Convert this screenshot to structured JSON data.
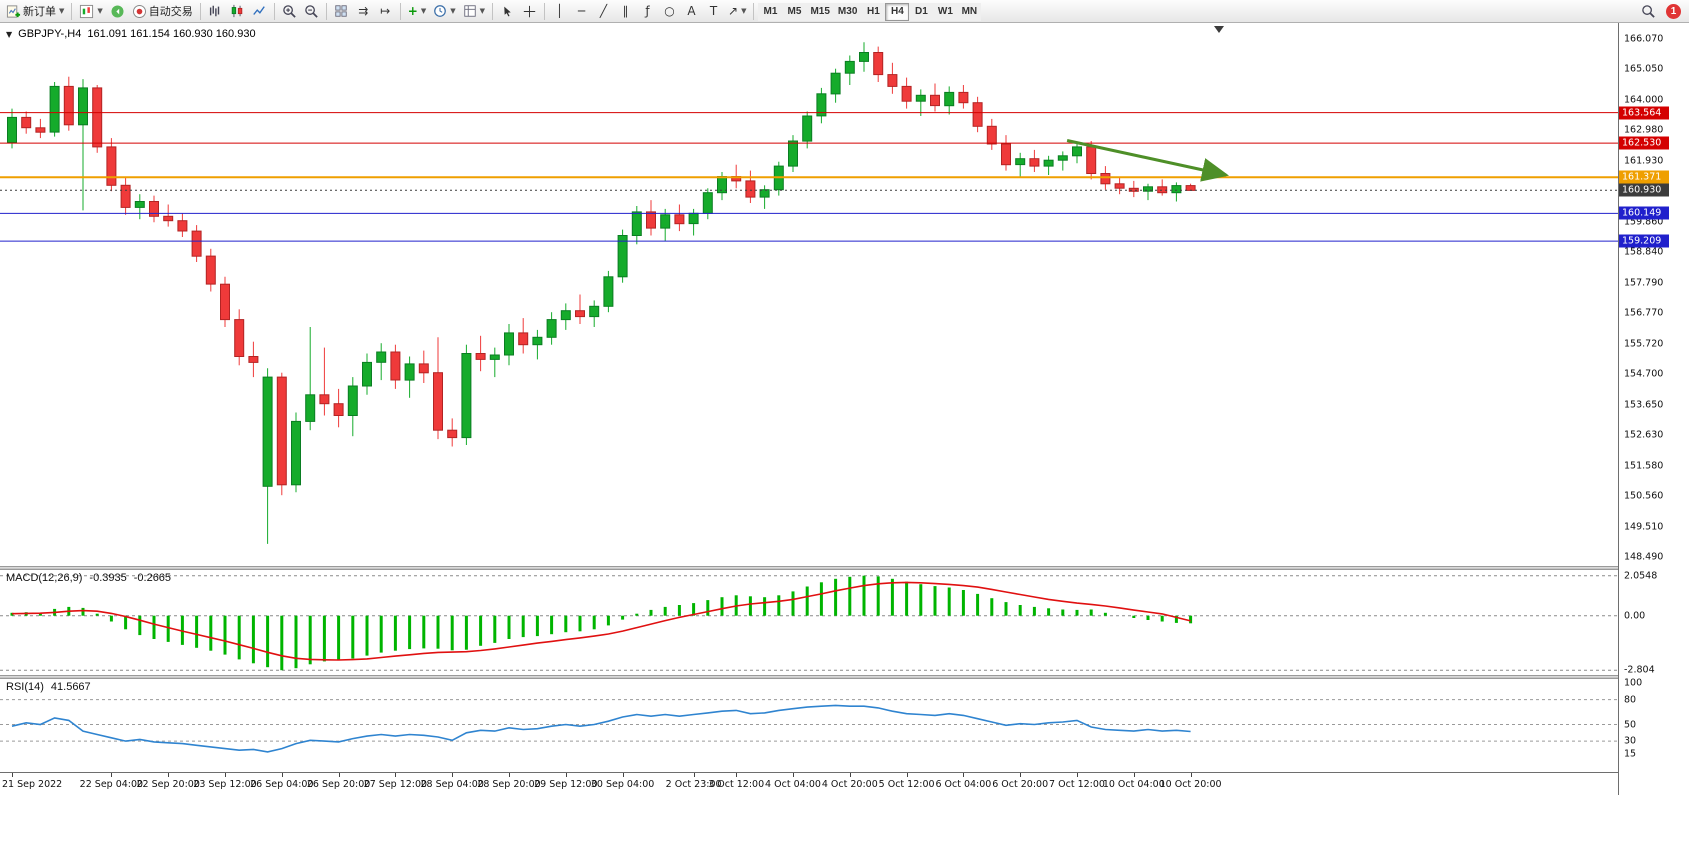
{
  "toolbar": {
    "new_order_label": "新订单",
    "auto_trading_label": "自动交易",
    "timeframes": [
      "M1",
      "M5",
      "M15",
      "M30",
      "H1",
      "H4",
      "D1",
      "W1",
      "MN"
    ],
    "active_timeframe": "H4",
    "notification_count": "1"
  },
  "chart": {
    "symbol_label": "GBPJPY-,H4",
    "ohlc_text": "161.091 161.154 160.930 160.930",
    "price_axis": [
      "166.070",
      "165.050",
      "164.000",
      "162.980",
      "161.930",
      "159.860",
      "158.840",
      "157.790",
      "156.770",
      "155.720",
      "154.700",
      "153.650",
      "152.630",
      "151.580",
      "150.560",
      "149.510",
      "148.490"
    ],
    "levels": [
      {
        "price": 163.564,
        "label": "163.564",
        "color": "#d40000",
        "style": "solid",
        "width": 1
      },
      {
        "price": 162.53,
        "label": "162.530",
        "color": "#d40000",
        "style": "solid",
        "width": 1
      },
      {
        "price": 161.371,
        "label": "161.371",
        "color": "#ef9f00",
        "style": "solid",
        "width": 2
      },
      {
        "price": 160.93,
        "label": "160.930",
        "color": "#3c3c3c",
        "style": "dotted",
        "width": 1
      },
      {
        "price": 160.149,
        "label": "160.149",
        "color": "#2020cc",
        "style": "solid",
        "width": 1
      },
      {
        "price": 159.209,
        "label": "159.209",
        "color": "#2020cc",
        "style": "solid",
        "width": 1
      }
    ],
    "arrow": {
      "from_idx": 74.3,
      "from_price": 162.62,
      "to_idx": 85.5,
      "to_price": 161.45,
      "color": "#4e8f28"
    },
    "shift_marker_idx": 85
  },
  "chart_data": {
    "type": "candlestick",
    "title": "GBPJPY- H4",
    "symbol": "GBPJPY",
    "timeframe": "H4",
    "up_color": "#15ab2b",
    "down_color": "#ef3a3a",
    "candles": [
      [
        "21 Sep 00:00",
        162.55,
        163.7,
        162.35,
        163.4
      ],
      [
        "21 Sep 04:00",
        163.4,
        163.6,
        162.85,
        163.05
      ],
      [
        "21 Sep 08:00",
        163.05,
        163.35,
        162.7,
        162.9
      ],
      [
        "21 Sep 12:00",
        162.9,
        164.6,
        162.75,
        164.45
      ],
      [
        "21 Sep 16:00",
        164.45,
        164.78,
        162.95,
        163.15
      ],
      [
        "21 Sep 20:00",
        163.15,
        164.7,
        160.25,
        164.4
      ],
      [
        "22 Sep 00:00",
        164.4,
        164.5,
        162.2,
        162.4
      ],
      [
        "22 Sep 04:00",
        162.4,
        162.7,
        160.9,
        161.1
      ],
      [
        "22 Sep 08:00",
        161.1,
        161.4,
        160.1,
        160.35
      ],
      [
        "22 Sep 12:00",
        160.35,
        160.8,
        159.95,
        160.55
      ],
      [
        "22 Sep 16:00",
        160.55,
        160.75,
        159.85,
        160.05
      ],
      [
        "22 Sep 20:00",
        160.05,
        160.45,
        159.7,
        159.9
      ],
      [
        "23 Sep 00:00",
        159.9,
        160.15,
        159.35,
        159.55
      ],
      [
        "23 Sep 04:00",
        159.55,
        159.75,
        158.5,
        158.7
      ],
      [
        "23 Sep 08:00",
        158.7,
        158.95,
        157.5,
        157.75
      ],
      [
        "23 Sep 12:00",
        157.75,
        158.0,
        156.3,
        156.55
      ],
      [
        "23 Sep 16:00",
        156.55,
        156.9,
        155.0,
        155.3
      ],
      [
        "23 Sep 20:00",
        155.3,
        155.8,
        154.6,
        155.1
      ],
      [
        "26 Sep 00:00",
        150.9,
        154.9,
        148.95,
        154.6
      ],
      [
        "26 Sep 04:00",
        154.6,
        154.75,
        150.6,
        150.95
      ],
      [
        "26 Sep 08:00",
        150.95,
        153.4,
        150.7,
        153.1
      ],
      [
        "26 Sep 12:00",
        153.1,
        156.3,
        152.8,
        154.0
      ],
      [
        "26 Sep 16:00",
        154.0,
        155.6,
        153.3,
        153.7
      ],
      [
        "26 Sep 20:00",
        153.7,
        154.2,
        152.9,
        153.3
      ],
      [
        "27 Sep 00:00",
        153.3,
        154.6,
        152.6,
        154.3
      ],
      [
        "27 Sep 04:00",
        154.3,
        155.4,
        154.0,
        155.1
      ],
      [
        "27 Sep 08:00",
        155.1,
        155.75,
        154.5,
        155.45
      ],
      [
        "27 Sep 12:00",
        155.45,
        155.7,
        154.2,
        154.5
      ],
      [
        "27 Sep 16:00",
        154.5,
        155.3,
        153.9,
        155.05
      ],
      [
        "27 Sep 20:00",
        155.05,
        155.5,
        154.4,
        154.75
      ],
      [
        "28 Sep 00:00",
        154.75,
        155.95,
        152.5,
        152.8
      ],
      [
        "28 Sep 04:00",
        152.8,
        153.2,
        152.25,
        152.55
      ],
      [
        "28 Sep 08:00",
        152.55,
        155.7,
        152.3,
        155.4
      ],
      [
        "28 Sep 12:00",
        155.4,
        156.0,
        154.8,
        155.2
      ],
      [
        "28 Sep 16:00",
        155.2,
        155.6,
        154.6,
        155.35
      ],
      [
        "28 Sep 20:00",
        155.35,
        156.4,
        155.0,
        156.1
      ],
      [
        "29 Sep 00:00",
        156.1,
        156.6,
        155.4,
        155.7
      ],
      [
        "29 Sep 04:00",
        155.7,
        156.2,
        155.2,
        155.95
      ],
      [
        "29 Sep 08:00",
        155.95,
        156.8,
        155.7,
        156.55
      ],
      [
        "29 Sep 12:00",
        156.55,
        157.1,
        156.2,
        156.85
      ],
      [
        "29 Sep 16:00",
        156.85,
        157.4,
        156.4,
        156.65
      ],
      [
        "29 Sep 20:00",
        156.65,
        157.2,
        156.3,
        157.0
      ],
      [
        "30 Sep 00:00",
        157.0,
        158.2,
        156.8,
        158.0
      ],
      [
        "30 Sep 04:00",
        158.0,
        159.6,
        157.8,
        159.4
      ],
      [
        "30 Sep 08:00",
        159.4,
        160.4,
        159.1,
        160.2
      ],
      [
        "30 Sep 12:00",
        160.2,
        160.6,
        159.4,
        159.65
      ],
      [
        "30 Sep 16:00",
        159.65,
        160.3,
        159.2,
        160.1
      ],
      [
        "30 Sep 20:00",
        160.1,
        160.45,
        159.55,
        159.8
      ],
      [
        "3 Oct 00:00",
        159.8,
        160.3,
        159.4,
        160.15
      ],
      [
        "3 Oct 04:00",
        160.15,
        161.0,
        159.95,
        160.85
      ],
      [
        "3 Oct 08:00",
        160.85,
        161.55,
        160.6,
        161.4
      ],
      [
        "3 Oct 12:00",
        161.4,
        161.8,
        161.0,
        161.25
      ],
      [
        "3 Oct 16:00",
        161.25,
        161.6,
        160.5,
        160.7
      ],
      [
        "3 Oct 20:00",
        160.7,
        161.1,
        160.3,
        160.95
      ],
      [
        "4 Oct 00:00",
        160.95,
        161.9,
        160.75,
        161.75
      ],
      [
        "4 Oct 04:00",
        161.75,
        162.8,
        161.55,
        162.6
      ],
      [
        "4 Oct 08:00",
        162.6,
        163.6,
        162.35,
        163.45
      ],
      [
        "4 Oct 12:00",
        163.45,
        164.4,
        163.2,
        164.2
      ],
      [
        "4 Oct 16:00",
        164.2,
        165.05,
        163.9,
        164.9
      ],
      [
        "4 Oct 20:00",
        164.9,
        165.5,
        164.5,
        165.3
      ],
      [
        "5 Oct 00:00",
        165.3,
        165.95,
        164.95,
        165.6
      ],
      [
        "5 Oct 04:00",
        165.6,
        165.8,
        164.6,
        164.85
      ],
      [
        "5 Oct 08:00",
        164.85,
        165.25,
        164.2,
        164.45
      ],
      [
        "5 Oct 12:00",
        164.45,
        164.75,
        163.7,
        163.95
      ],
      [
        "5 Oct 16:00",
        163.95,
        164.35,
        163.45,
        164.15
      ],
      [
        "5 Oct 20:00",
        164.15,
        164.55,
        163.6,
        163.8
      ],
      [
        "6 Oct 00:00",
        163.8,
        164.45,
        163.5,
        164.25
      ],
      [
        "6 Oct 04:00",
        164.25,
        164.5,
        163.7,
        163.9
      ],
      [
        "6 Oct 08:00",
        163.9,
        164.1,
        162.9,
        163.1
      ],
      [
        "6 Oct 12:00",
        163.1,
        163.35,
        162.3,
        162.5
      ],
      [
        "6 Oct 16:00",
        162.5,
        162.8,
        161.6,
        161.8
      ],
      [
        "6 Oct 20:00",
        161.8,
        162.2,
        161.4,
        162.0
      ],
      [
        "7 Oct 00:00",
        162.0,
        162.3,
        161.55,
        161.75
      ],
      [
        "7 Oct 04:00",
        161.75,
        162.1,
        161.45,
        161.95
      ],
      [
        "7 Oct 08:00",
        161.95,
        162.25,
        161.6,
        162.1
      ],
      [
        "7 Oct 12:00",
        162.1,
        162.55,
        161.85,
        162.4
      ],
      [
        "7 Oct 16:00",
        162.4,
        162.6,
        161.3,
        161.5
      ],
      [
        "7 Oct 20:00",
        161.5,
        161.75,
        160.95,
        161.15
      ],
      [
        "10 Oct 00:00",
        161.15,
        161.35,
        160.8,
        161.0
      ],
      [
        "10 Oct 04:00",
        161.0,
        161.25,
        160.7,
        160.9
      ],
      [
        "10 Oct 08:00",
        160.9,
        161.15,
        160.6,
        161.05
      ],
      [
        "10 Oct 12:00",
        161.05,
        161.3,
        160.75,
        160.85
      ],
      [
        "10 Oct 16:00",
        160.85,
        161.2,
        160.55,
        161.09
      ],
      [
        "10 Oct 20:00",
        161.091,
        161.154,
        160.93,
        160.93
      ]
    ],
    "time_labels": [
      {
        "text": "21 Sep 2022",
        "idx": 0
      },
      {
        "text": "22 Sep 04:00",
        "idx": 7
      },
      {
        "text": "22 Sep 20:00",
        "idx": 11
      },
      {
        "text": "23 Sep 12:00",
        "idx": 15
      },
      {
        "text": "26 Sep 04:00",
        "idx": 19
      },
      {
        "text": "26 Sep 20:00",
        "idx": 23
      },
      {
        "text": "27 Sep 12:00",
        "idx": 27
      },
      {
        "text": "28 Sep 04:00",
        "idx": 31
      },
      {
        "text": "28 Sep 20:00",
        "idx": 35
      },
      {
        "text": "29 Sep 12:00",
        "idx": 39
      },
      {
        "text": "30 Sep 04:00",
        "idx": 43
      },
      {
        "text": "2 Oct 23:00",
        "idx": 48
      },
      {
        "text": "3 Oct 12:00",
        "idx": 51
      },
      {
        "text": "4 Oct 04:00",
        "idx": 55
      },
      {
        "text": "4 Oct 20:00",
        "idx": 59
      },
      {
        "text": "5 Oct 12:00",
        "idx": 63
      },
      {
        "text": "6 Oct 04:00",
        "idx": 67
      },
      {
        "text": "6 Oct 20:00",
        "idx": 71
      },
      {
        "text": "7 Oct 12:00",
        "idx": 75
      },
      {
        "text": "10 Oct 04:00",
        "idx": 79
      },
      {
        "text": "10 Oct 20:00",
        "idx": 83
      }
    ]
  },
  "macd": {
    "label": "MACD(12,26,9)",
    "main_value": "-0.3935",
    "signal_value": "-0.2665",
    "axis_labels": [
      "2.0548",
      "0.00",
      "-2.804"
    ],
    "histogram_color": "#00b400",
    "signal_color": "#e01010",
    "histogram": [
      0.15,
      0.18,
      0.15,
      0.35,
      0.45,
      0.4,
      0.1,
      -0.3,
      -0.7,
      -1.0,
      -1.2,
      -1.35,
      -1.5,
      -1.65,
      -1.8,
      -2.0,
      -2.25,
      -2.45,
      -2.65,
      -2.804,
      -2.7,
      -2.5,
      -2.35,
      -2.3,
      -2.2,
      -2.05,
      -1.9,
      -1.8,
      -1.72,
      -1.68,
      -1.7,
      -1.78,
      -1.75,
      -1.55,
      -1.4,
      -1.2,
      -1.1,
      -1.05,
      -0.95,
      -0.85,
      -0.8,
      -0.7,
      -0.5,
      -0.2,
      0.1,
      0.3,
      0.45,
      0.55,
      0.65,
      0.8,
      0.95,
      1.05,
      1.0,
      0.95,
      1.05,
      1.25,
      1.5,
      1.72,
      1.9,
      2.0,
      2.0548,
      2.02,
      1.9,
      1.75,
      1.62,
      1.52,
      1.45,
      1.32,
      1.12,
      0.9,
      0.7,
      0.55,
      0.45,
      0.38,
      0.32,
      0.3,
      0.32,
      0.15,
      0.0,
      -0.12,
      -0.22,
      -0.3,
      -0.37,
      -0.3935
    ],
    "signal": [
      0.1,
      0.12,
      0.13,
      0.17,
      0.23,
      0.26,
      0.23,
      0.12,
      -0.04,
      -0.23,
      -0.43,
      -0.61,
      -0.79,
      -0.96,
      -1.13,
      -1.3,
      -1.49,
      -1.68,
      -1.88,
      -2.06,
      -2.19,
      -2.25,
      -2.27,
      -2.28,
      -2.26,
      -2.22,
      -2.15,
      -2.08,
      -2.01,
      -1.94,
      -1.89,
      -1.87,
      -1.85,
      -1.79,
      -1.71,
      -1.61,
      -1.51,
      -1.41,
      -1.32,
      -1.23,
      -1.14,
      -1.05,
      -0.94,
      -0.79,
      -0.61,
      -0.43,
      -0.25,
      -0.09,
      0.06,
      0.21,
      0.36,
      0.5,
      0.6,
      0.67,
      0.74,
      0.84,
      0.98,
      1.12,
      1.28,
      1.42,
      1.55,
      1.64,
      1.69,
      1.71,
      1.69,
      1.65,
      1.61,
      1.55,
      1.47,
      1.35,
      1.22,
      1.09,
      0.96,
      0.84,
      0.74,
      0.65,
      0.58,
      0.5,
      0.4,
      0.29,
      0.19,
      0.09,
      -0.09,
      -0.2665
    ]
  },
  "rsi": {
    "label": "RSI(14)",
    "value": "41.5667",
    "axis_labels": [
      "100",
      "80",
      "50",
      "30",
      "15"
    ],
    "levels": [
      80,
      50,
      30
    ],
    "line_color": "#2f84d0",
    "values": [
      48,
      52,
      50,
      58,
      55,
      42,
      38,
      34,
      30,
      32,
      29,
      28,
      27,
      25,
      23,
      21,
      19,
      20,
      17,
      21,
      27,
      31,
      30,
      29,
      33,
      36,
      38,
      36,
      38,
      37,
      35,
      31,
      40,
      43,
      42,
      46,
      44,
      45,
      48,
      50,
      48,
      50,
      54,
      59,
      62,
      60,
      62,
      60,
      62,
      64,
      66,
      67,
      63,
      64,
      67,
      69,
      71,
      72,
      73,
      72,
      72,
      70,
      66,
      63,
      62,
      61,
      63,
      61,
      57,
      53,
      49,
      51,
      50,
      52,
      53,
      55,
      47,
      44,
      43,
      42,
      44,
      42,
      43,
      41.5667
    ]
  }
}
